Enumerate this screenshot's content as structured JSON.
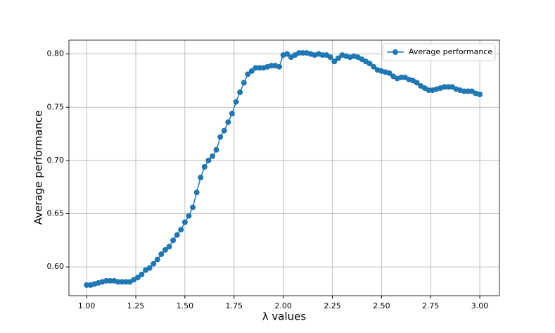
{
  "chart_data": {
    "type": "line",
    "x_label": "λ values",
    "y_label": "Average performance",
    "x": [
      1.0,
      1.02,
      1.04,
      1.06,
      1.08,
      1.1,
      1.12,
      1.14,
      1.16,
      1.18,
      1.2,
      1.22,
      1.24,
      1.26,
      1.28,
      1.3,
      1.32,
      1.34,
      1.36,
      1.38,
      1.4,
      1.42,
      1.44,
      1.46,
      1.48,
      1.5,
      1.52,
      1.54,
      1.56,
      1.58,
      1.6,
      1.62,
      1.64,
      1.66,
      1.68,
      1.7,
      1.72,
      1.74,
      1.76,
      1.78,
      1.8,
      1.82,
      1.84,
      1.86,
      1.88,
      1.9,
      1.92,
      1.94,
      1.96,
      1.98,
      2.0,
      2.02,
      2.04,
      2.06,
      2.08,
      2.1,
      2.12,
      2.14,
      2.16,
      2.18,
      2.2,
      2.22,
      2.24,
      2.26,
      2.28,
      2.3,
      2.32,
      2.34,
      2.36,
      2.38,
      2.4,
      2.42,
      2.44,
      2.46,
      2.48,
      2.5,
      2.52,
      2.54,
      2.56,
      2.58,
      2.6,
      2.62,
      2.64,
      2.66,
      2.68,
      2.7,
      2.72,
      2.74,
      2.76,
      2.78,
      2.8,
      2.82,
      2.84,
      2.86,
      2.88,
      2.9,
      2.92,
      2.94,
      2.96,
      2.98,
      3.0
    ],
    "series": [
      {
        "name": "Average performance",
        "color": "#1f77b4",
        "values": [
          0.583,
          0.583,
          0.584,
          0.585,
          0.586,
          0.587,
          0.587,
          0.587,
          0.586,
          0.586,
          0.586,
          0.586,
          0.588,
          0.59,
          0.593,
          0.597,
          0.599,
          0.603,
          0.607,
          0.612,
          0.616,
          0.619,
          0.625,
          0.63,
          0.635,
          0.642,
          0.648,
          0.656,
          0.67,
          0.684,
          0.694,
          0.7,
          0.704,
          0.71,
          0.722,
          0.728,
          0.736,
          0.744,
          0.755,
          0.764,
          0.773,
          0.781,
          0.784,
          0.787,
          0.787,
          0.787,
          0.788,
          0.789,
          0.789,
          0.788,
          0.799,
          0.8,
          0.797,
          0.799,
          0.801,
          0.801,
          0.801,
          0.8,
          0.799,
          0.8,
          0.799,
          0.799,
          0.797,
          0.793,
          0.796,
          0.799,
          0.798,
          0.797,
          0.798,
          0.797,
          0.795,
          0.793,
          0.791,
          0.788,
          0.785,
          0.784,
          0.783,
          0.782,
          0.779,
          0.777,
          0.778,
          0.778,
          0.776,
          0.775,
          0.773,
          0.77,
          0.768,
          0.766,
          0.766,
          0.767,
          0.768,
          0.769,
          0.769,
          0.769,
          0.767,
          0.766,
          0.765,
          0.765,
          0.765,
          0.763,
          0.762
        ]
      }
    ],
    "xlim": [
      0.91,
      3.1
    ],
    "ylim": [
      0.573,
      0.813
    ],
    "xticks": [
      {
        "value": 1,
        "label": "1.00"
      },
      {
        "value": 1.25,
        "label": "1.25"
      },
      {
        "value": 1.5,
        "label": "1.50"
      },
      {
        "value": 1.75,
        "label": "1.75"
      },
      {
        "value": 2,
        "label": "2.00"
      },
      {
        "value": 2.25,
        "label": "2.25"
      },
      {
        "value": 2.5,
        "label": "2.50"
      },
      {
        "value": 2.75,
        "label": "2.75"
      },
      {
        "value": 3,
        "label": "3.00"
      }
    ],
    "yticks": [
      {
        "value": 0.6,
        "label": "0.60"
      },
      {
        "value": 0.65,
        "label": "0.65"
      },
      {
        "value": 0.7,
        "label": "0.70"
      },
      {
        "value": 0.75,
        "label": "0.75"
      },
      {
        "value": 0.8,
        "label": "0.80"
      }
    ],
    "grid": true,
    "legend": "upper right"
  }
}
